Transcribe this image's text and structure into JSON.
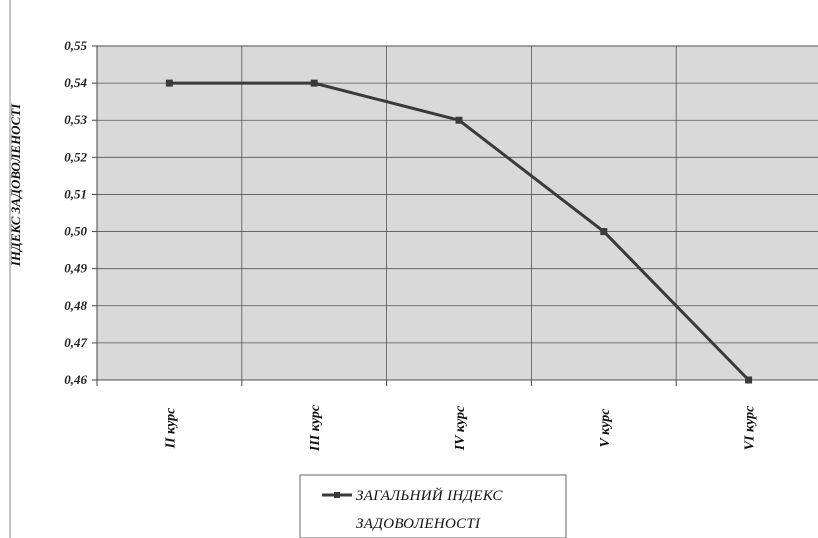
{
  "chart_data": {
    "type": "line",
    "title": "",
    "xlabel": "",
    "ylabel": "ІНДЕКС ЗАДОВОЛЕНОСТІ",
    "categories": [
      "ІІ курс",
      "ІІІ курс",
      "ІV курс",
      "V курс",
      "VІ курс"
    ],
    "series": [
      {
        "name": "ЗАГАЛЬНИЙ ІНДЕКС ЗАДОВОЛЕНОСТІ",
        "values": [
          0.54,
          0.54,
          0.53,
          0.5,
          0.46
        ]
      }
    ],
    "ylim": [
      0.46,
      0.55
    ],
    "yticks": [
      "0,46",
      "0,47",
      "0,48",
      "0,49",
      "0,50",
      "0,51",
      "0,52",
      "0,53",
      "0,54",
      "0,55"
    ],
    "grid": true,
    "legend_position": "bottom",
    "legend_lines": [
      "ЗАГАЛЬНИЙ ІНДЕКС",
      "ЗАДОВОЛЕНОСТІ"
    ],
    "colors": {
      "plot_bg": "#d9d9d9",
      "line": "#3a3a3a",
      "grid": "#555555"
    }
  }
}
